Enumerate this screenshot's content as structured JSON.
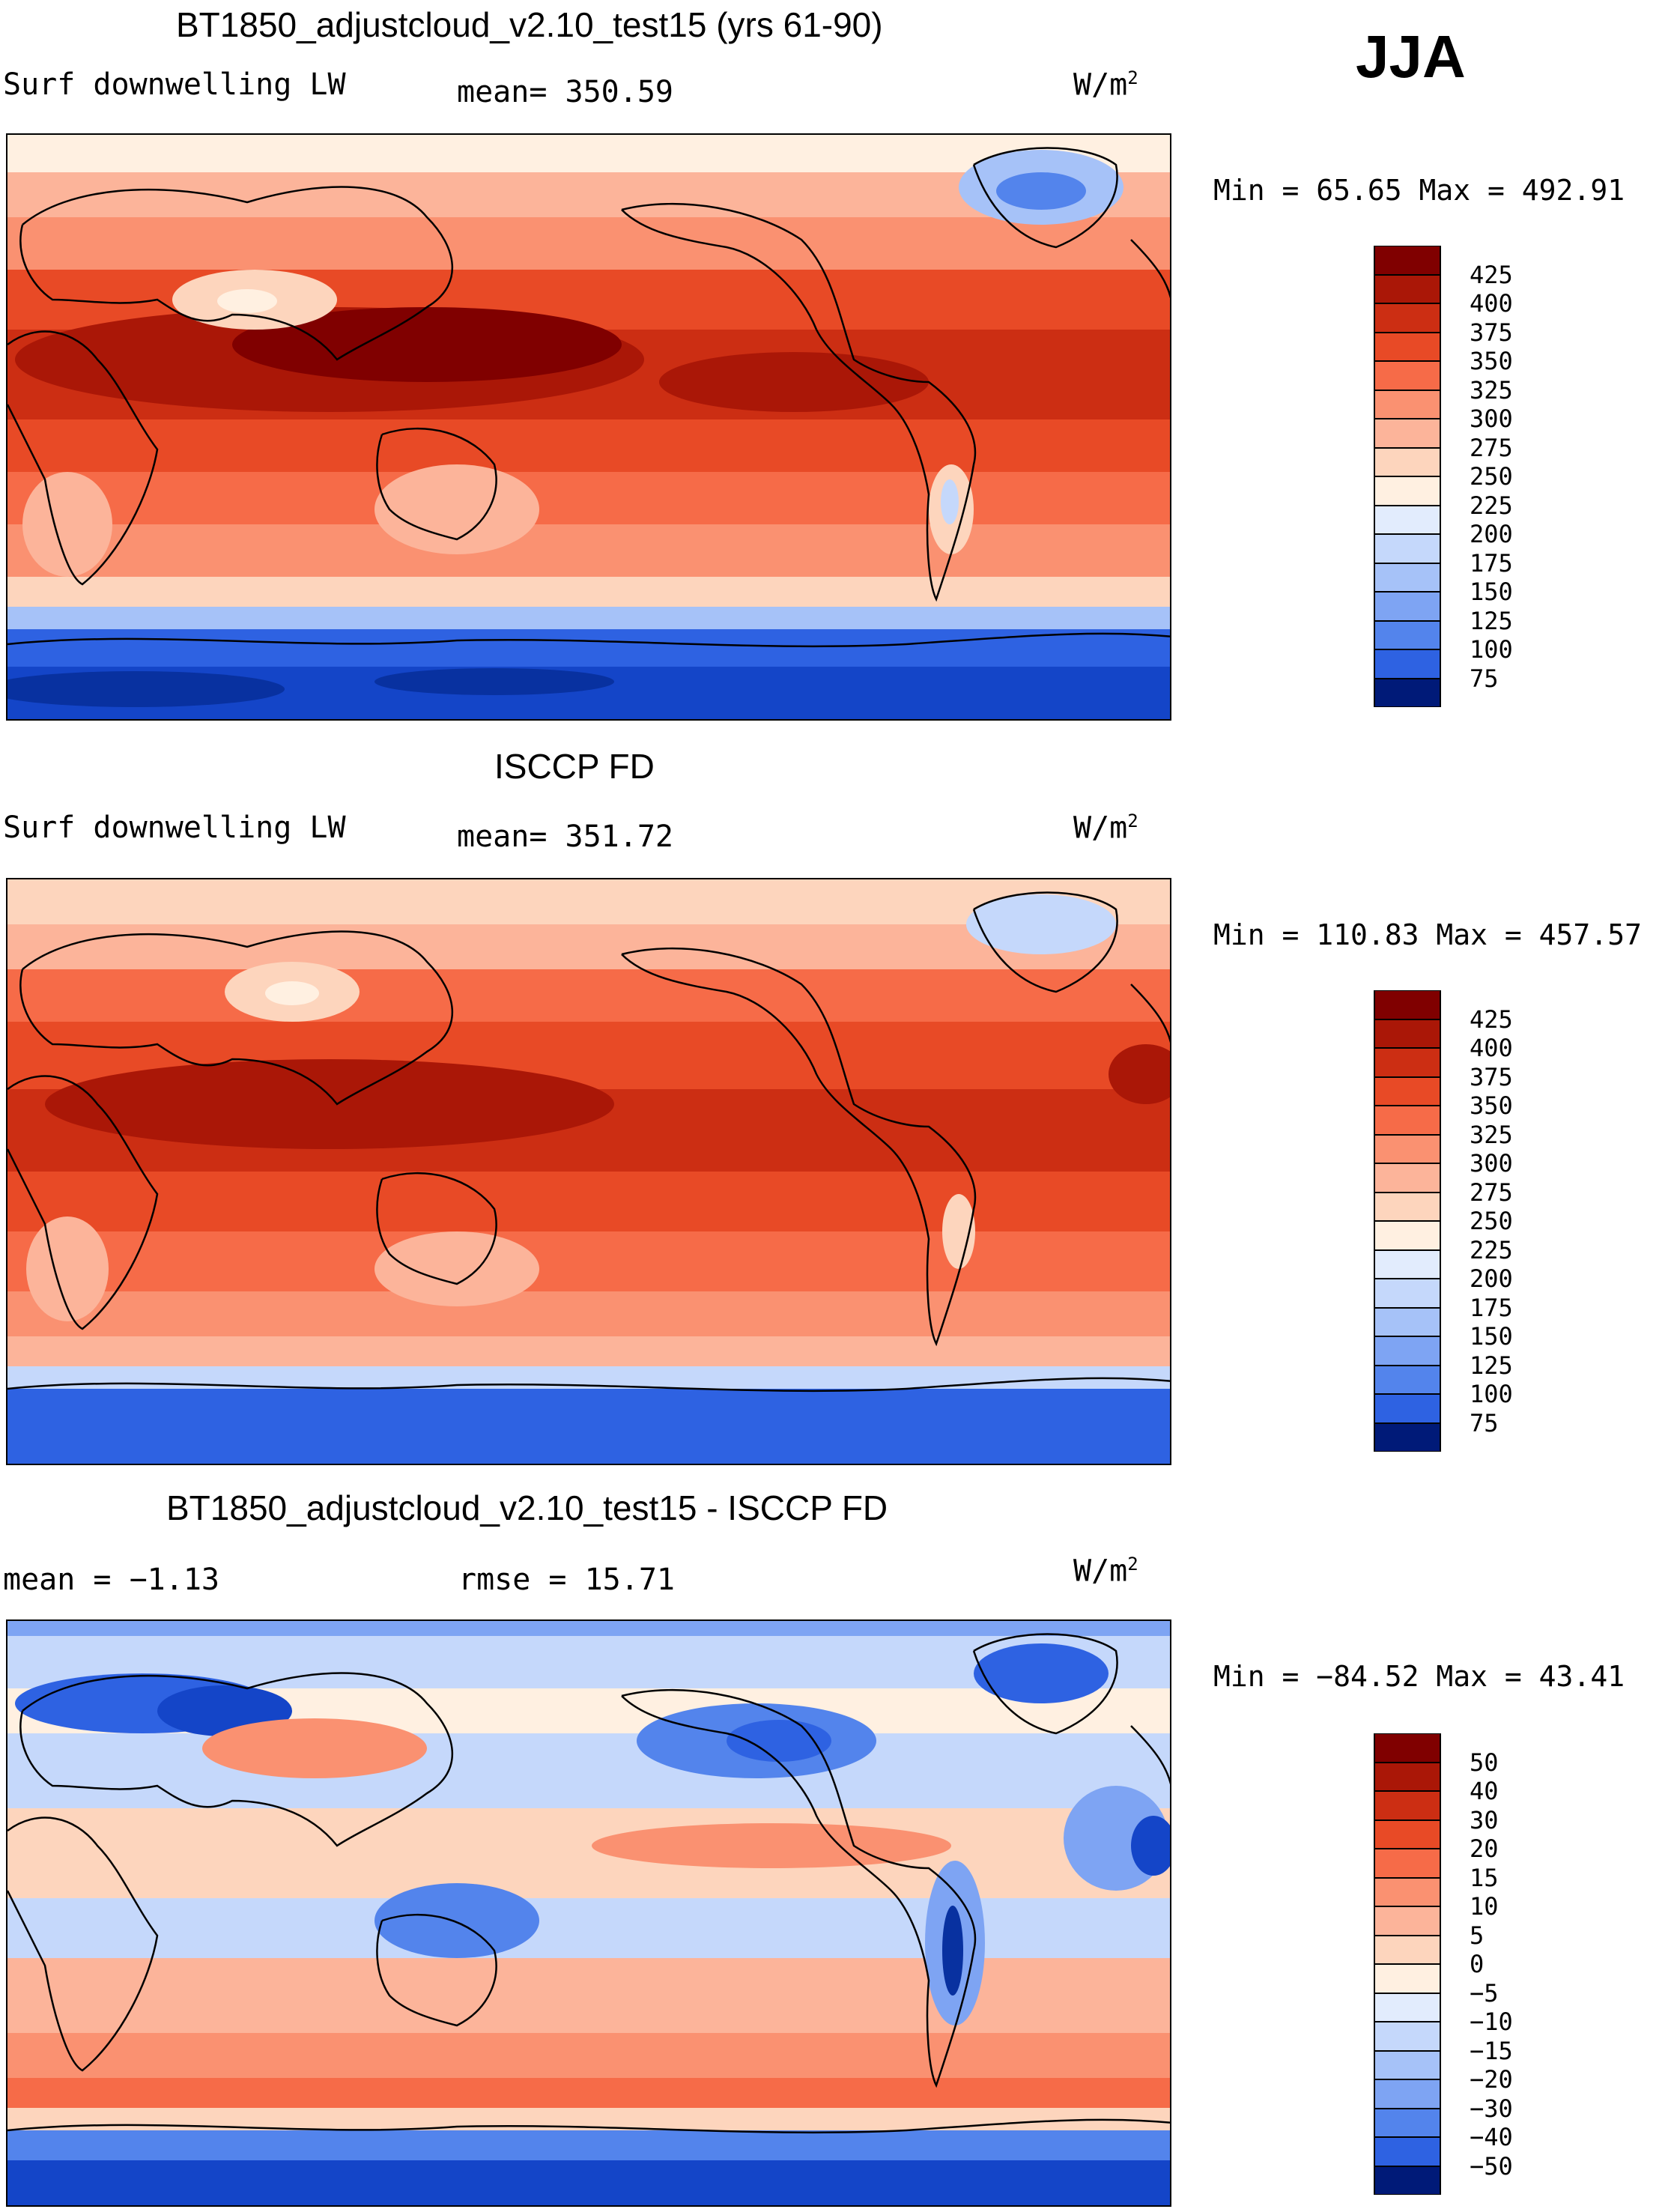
{
  "season": "JJA",
  "colors": {
    "warm": [
      "#fff0e1",
      "#fdd5bd",
      "#fcb49a",
      "#fa9171",
      "#f66b48",
      "#e84a26",
      "#cc2e13",
      "#aa1707",
      "#800000"
    ],
    "cool": [
      "#e2ecfd",
      "#c5d8fb",
      "#a6c2f8",
      "#7ea4f3",
      "#5384ec",
      "#2e62e2",
      "#1445c8",
      "#0831a0",
      "#001a78"
    ],
    "ocean_pattern_note": "",
    "coast": "#000000"
  },
  "panels": [
    {
      "title": "BT1850_adjustcloud_v2.10_test15 (yrs 61-90)",
      "left_label": "Surf downwelling LW",
      "center_label": "mean= 350.59",
      "units": "W/m",
      "units_sup": "2",
      "minmax": "Min =   65.65 Max = 492.91",
      "colorbar": {
        "labels": [
          "425",
          "400",
          "375",
          "350",
          "325",
          "300",
          "275",
          "250",
          "225",
          "200",
          "175",
          "150",
          "125",
          "100",
          "75"
        ],
        "colors": [
          "#800000",
          "#aa1707",
          "#cc2e13",
          "#e84a26",
          "#f66b48",
          "#fa9171",
          "#fcb49a",
          "#fdd5bd",
          "#fff0e1",
          "#e2ecfd",
          "#c5d8fb",
          "#a6c2f8",
          "#7ea4f3",
          "#5384ec",
          "#2e62e2",
          "#001a78"
        ]
      }
    },
    {
      "title": "ISCCP FD",
      "left_label": "Surf downwelling LW",
      "center_label": "mean= 351.72",
      "units": "W/m",
      "units_sup": "2",
      "minmax": "Min = 110.83 Max = 457.57",
      "colorbar": {
        "labels": [
          "425",
          "400",
          "375",
          "350",
          "325",
          "300",
          "275",
          "250",
          "225",
          "200",
          "175",
          "150",
          "125",
          "100",
          "75"
        ],
        "colors": [
          "#800000",
          "#aa1707",
          "#cc2e13",
          "#e84a26",
          "#f66b48",
          "#fa9171",
          "#fcb49a",
          "#fdd5bd",
          "#fff0e1",
          "#e2ecfd",
          "#c5d8fb",
          "#a6c2f8",
          "#7ea4f3",
          "#5384ec",
          "#2e62e2",
          "#001a78"
        ]
      }
    },
    {
      "title": "BT1850_adjustcloud_v2.10_test15 - ISCCP FD",
      "left_label": "mean =  −1.13",
      "center_label": "rmse =   15.71",
      "units": "W/m",
      "units_sup": "2",
      "minmax": "Min = −84.52 Max =  43.41",
      "colorbar": {
        "labels": [
          "50",
          "40",
          "30",
          "20",
          "15",
          "10",
          "5",
          "0",
          "−5",
          "−10",
          "−15",
          "−20",
          "−30",
          "−40",
          "−50"
        ],
        "colors": [
          "#800000",
          "#aa1707",
          "#cc2e13",
          "#e84a26",
          "#f66b48",
          "#fa9171",
          "#fcb49a",
          "#fdd5bd",
          "#fff0e1",
          "#e2ecfd",
          "#c5d8fb",
          "#a6c2f8",
          "#7ea4f3",
          "#5384ec",
          "#2e62e2",
          "#001a78"
        ]
      }
    }
  ]
}
